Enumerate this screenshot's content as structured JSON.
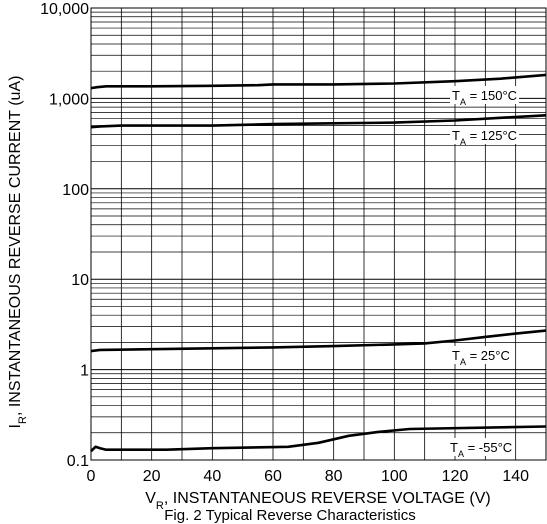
{
  "chart_data": {
    "type": "line",
    "title": "",
    "caption": "Fig. 2 Typical Reverse Characteristics",
    "xlabel": {
      "main": "V",
      "sub": "R",
      "rest": ", INSTANTANEOUS REVERSE VOLTAGE (V)"
    },
    "ylabel": {
      "main": "I",
      "sub": "R",
      "rest": ", INSTANTANEOUS REVERSE CURRENT (uA)"
    },
    "xlim": [
      0,
      150
    ],
    "ylim": [
      0.1,
      10000
    ],
    "yscale": "log",
    "grid": true,
    "x_ticks": [
      0,
      20,
      40,
      60,
      80,
      100,
      120,
      140
    ],
    "x_tick_labels": [
      "0",
      "20",
      "40",
      "60",
      "80",
      "100",
      "120",
      "140"
    ],
    "y_ticks": [
      0.1,
      1,
      10,
      100,
      1000,
      10000
    ],
    "y_tick_labels": [
      "0.1",
      "1",
      "10",
      "100",
      "1,000",
      "10,000"
    ],
    "series": [
      {
        "name": "T_A = 150°C",
        "label": {
          "pre": "T",
          "sub": "A",
          "post": " = 150°C"
        },
        "points": [
          [
            0,
            1300
          ],
          [
            2,
            1330
          ],
          [
            5,
            1360
          ],
          [
            20,
            1360
          ],
          [
            40,
            1380
          ],
          [
            55,
            1400
          ],
          [
            60,
            1430
          ],
          [
            80,
            1430
          ],
          [
            100,
            1460
          ],
          [
            120,
            1550
          ],
          [
            135,
            1650
          ],
          [
            150,
            1820
          ]
        ]
      },
      {
        "name": "T_A = 125°C",
        "label": {
          "pre": "T",
          "sub": "A",
          "post": " = 125°C"
        },
        "points": [
          [
            0,
            480
          ],
          [
            3,
            490
          ],
          [
            10,
            500
          ],
          [
            40,
            500
          ],
          [
            60,
            520
          ],
          [
            80,
            530
          ],
          [
            100,
            540
          ],
          [
            120,
            570
          ],
          [
            135,
            610
          ],
          [
            150,
            650
          ]
        ]
      },
      {
        "name": "T_A = 25°C",
        "label": {
          "pre": "T",
          "sub": "A",
          "post": " = 25°C"
        },
        "points": [
          [
            0,
            1.6
          ],
          [
            3,
            1.65
          ],
          [
            20,
            1.68
          ],
          [
            40,
            1.72
          ],
          [
            60,
            1.76
          ],
          [
            80,
            1.82
          ],
          [
            100,
            1.9
          ],
          [
            110,
            1.95
          ],
          [
            120,
            2.1
          ],
          [
            130,
            2.3
          ],
          [
            140,
            2.5
          ],
          [
            150,
            2.7
          ]
        ]
      },
      {
        "name": "T_A = -55°C",
        "label": {
          "pre": "T",
          "sub": "A",
          "post": " = -55°C"
        },
        "points": [
          [
            0,
            0.125
          ],
          [
            1.5,
            0.14
          ],
          [
            3,
            0.135
          ],
          [
            5,
            0.13
          ],
          [
            25,
            0.13
          ],
          [
            40,
            0.135
          ],
          [
            65,
            0.14
          ],
          [
            75,
            0.155
          ],
          [
            85,
            0.185
          ],
          [
            95,
            0.205
          ],
          [
            105,
            0.22
          ],
          [
            150,
            0.235
          ]
        ]
      }
    ]
  }
}
